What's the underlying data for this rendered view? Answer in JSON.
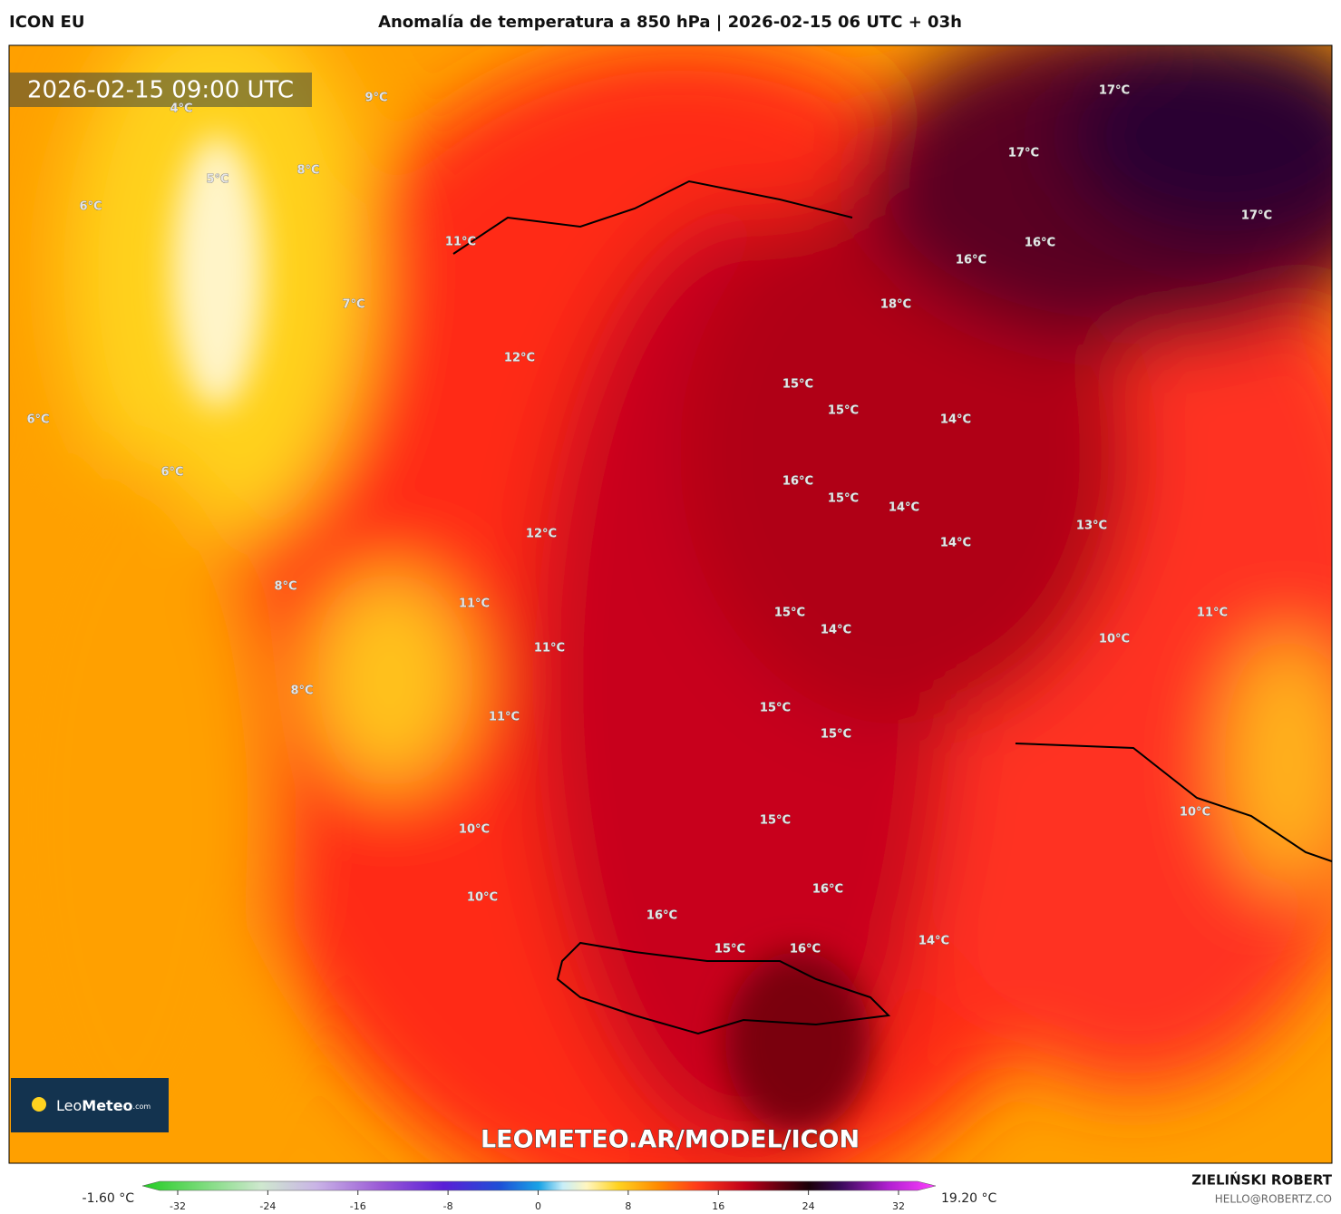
{
  "header": {
    "model": "ICON EU",
    "title": "Anomalía de temperatura a 850 hPa | 2026-02-15 06 UTC + 03h"
  },
  "map": {
    "timestamp": "2026-02-15 09:00 UTC",
    "labels": [
      "9°C",
      "4°C",
      "8°C",
      "5°C",
      "6°C",
      "7°C",
      "11°C",
      "12°C",
      "6°C",
      "6°C",
      "12°C",
      "8°C",
      "11°C",
      "11°C",
      "8°C",
      "11°C",
      "10°C",
      "10°C",
      "16°C",
      "15°C",
      "16°C",
      "16°C",
      "15°C",
      "15°C",
      "15°C",
      "15°C",
      "14°C",
      "16°C",
      "15°C",
      "15°C",
      "15°C",
      "14°C",
      "14°C",
      "14°C",
      "18°C",
      "16°C",
      "16°C",
      "17°C",
      "17°C",
      "17°C",
      "13°C",
      "11°C",
      "10°C",
      "10°C",
      "14°C"
    ],
    "watermark": "LEOMETEO.AR/MODEL/ICON",
    "logo": {
      "name": "Leo",
      "bold": "Meteo",
      "suffix": ".com"
    }
  },
  "colorbar": {
    "min_label": "-1.60 °C",
    "max_label": "19.20 °C",
    "range": [
      -32,
      32
    ],
    "ticks": [
      -32,
      -24,
      -16,
      -8,
      0,
      8,
      16,
      24,
      32
    ]
  },
  "footer": {
    "author": "ZIELIŃSKI ROBERT",
    "email": "HELLO@ROBERTZ.CO"
  }
}
